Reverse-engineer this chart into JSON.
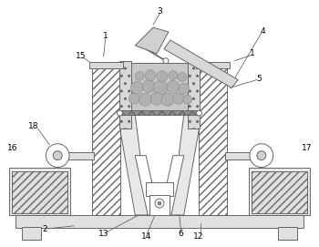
{
  "lc": "#666666",
  "lw": 0.7,
  "hatch_fc": "#e8e8e8",
  "stone_fc": "#c0c0c0",
  "box_fc": "#eeeeee",
  "white": "#ffffff"
}
